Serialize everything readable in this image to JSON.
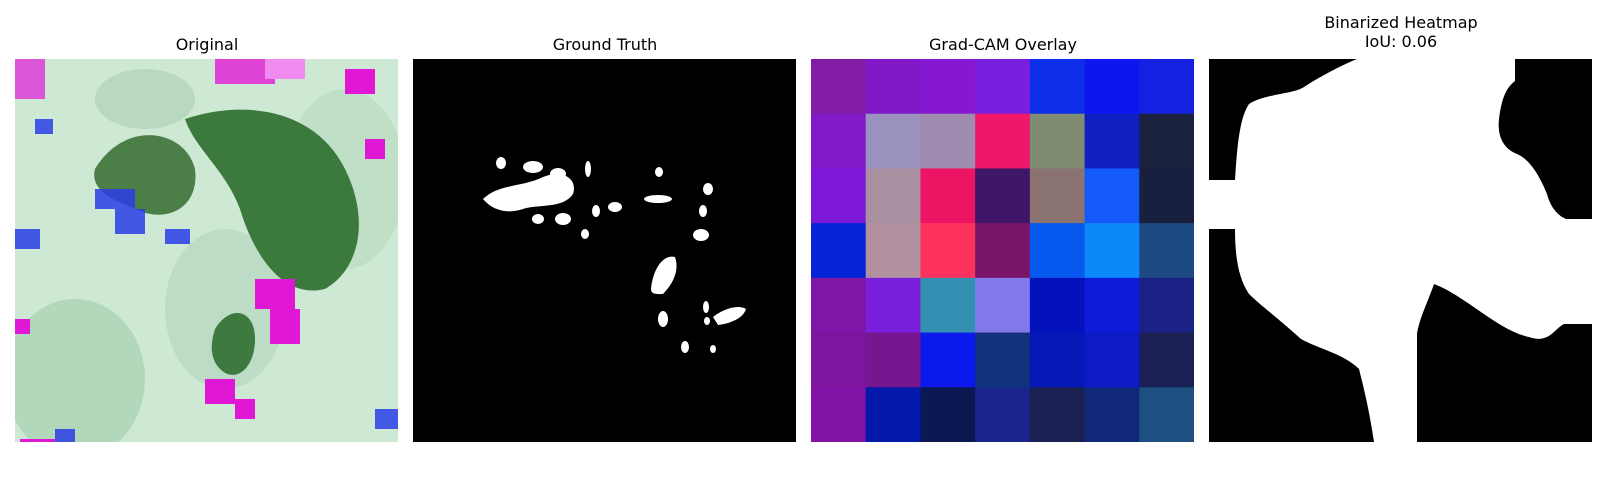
{
  "panels": {
    "original": {
      "title": "Original"
    },
    "ground_truth": {
      "title": "Ground Truth"
    },
    "gradcam": {
      "title": "Grad-CAM Overlay",
      "grid": [
        [
          "#821ba5",
          "#8118c8",
          "#8518d0",
          "#7a1fde",
          "#0c2ee8",
          "#0b17ee",
          "#1421e1"
        ],
        [
          "#8419ca",
          "#9a92bf",
          "#a08cb0",
          "#f0176a",
          "#7f8c72",
          "#0f1fc0",
          "#1a2240"
        ],
        [
          "#7e19d7",
          "#a991a2",
          "#ed1563",
          "#401668",
          "#8a7371",
          "#1459fa",
          "#19203f"
        ],
        [
          "#0624d5",
          "#b190a0",
          "#fc325c",
          "#7a166a",
          "#0859f0",
          "#0d88f9",
          "#1d4a82"
        ],
        [
          "#7e17a7",
          "#7a20dc",
          "#3490b2",
          "#8479ec",
          "#0412bc",
          "#0e1bd8",
          "#1a2187"
        ],
        [
          "#7d15a1",
          "#77168f",
          "#0c19ec",
          "#11327c",
          "#0619b6",
          "#0c1bc4",
          "#1a2053"
        ],
        [
          "#8014a6",
          "#0218ab",
          "#0b1852",
          "#19248f",
          "#1a2152",
          "#11297b",
          "#1d5081"
        ]
      ]
    },
    "binarized": {
      "title_line1": "Binarized Heatmap",
      "title_line2": "IoU: 0.06"
    }
  }
}
